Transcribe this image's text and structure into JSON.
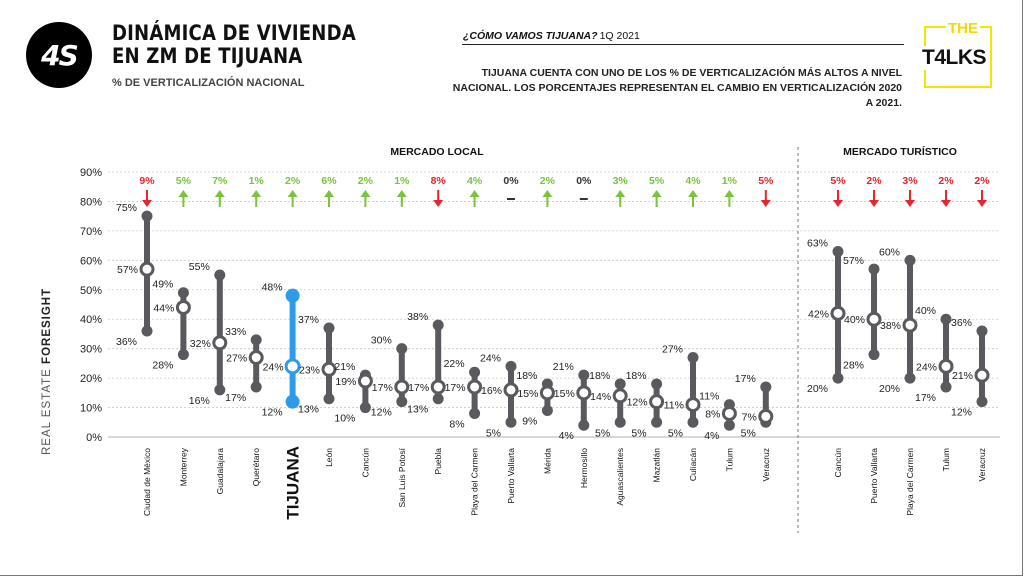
{
  "badge": {
    "text": "4S"
  },
  "title": {
    "line1": "DINÁMICA DE VIVIENDA",
    "line2": "EN ZM DE TIJUANA"
  },
  "subtitle": "% DE VERTICALIZACIÓN NACIONAL",
  "header": {
    "question": "¿CÓMO VAMOS TIJUANA?",
    "period": "1Q 2021"
  },
  "description": "TIJUANA CUENTA CON UNO DE LOS % DE VERTICALIZACIÓN MÁS ALTOS A NIVEL NACIONAL. LOS PORCENTAJES REPRESENTAN EL CAMBIO EN  VERTICALIZACIÓN 2020 A 2021.",
  "logo": {
    "top": "THE",
    "main": "T4LKS"
  },
  "side_label": {
    "light": "REAL ESTATE",
    "bold": "FORESIGHT"
  },
  "colors": {
    "bar": "#5a5a5e",
    "highlight": "#2f9be8",
    "up": "#78c43a",
    "down": "#e8242c",
    "neutral": "#333333"
  },
  "chart_data": {
    "type": "range",
    "ylim": [
      0,
      90
    ],
    "yticks": [
      "0%",
      "10%",
      "20%",
      "30%",
      "40%",
      "50%",
      "60%",
      "70%",
      "80%",
      "90%"
    ],
    "grid": true,
    "groups": [
      {
        "label": "MERCADO LOCAL",
        "count": 18
      },
      {
        "label": "MERCADO TURÍSTICO",
        "count": 5
      }
    ],
    "highlight": "TIJUANA",
    "points": [
      {
        "name": "Ciudad de México",
        "min": 36,
        "avg": 57,
        "max": 75,
        "change": "9%",
        "dir": "down"
      },
      {
        "name": "Monterrey",
        "min": 28,
        "avg": 44,
        "max": 49,
        "change": "5%",
        "dir": "up"
      },
      {
        "name": "Guadalajara",
        "min": 16,
        "avg": 32,
        "max": 55,
        "change": "7%",
        "dir": "up"
      },
      {
        "name": "Querétaro",
        "min": 17,
        "avg": 27,
        "max": 33,
        "change": "1%",
        "dir": "up"
      },
      {
        "name": "TIJUANA",
        "min": 12,
        "avg": 24,
        "max": 48,
        "change": "2%",
        "dir": "up"
      },
      {
        "name": "León",
        "min": 13,
        "avg": 23,
        "max": 37,
        "change": "6%",
        "dir": "up"
      },
      {
        "name": "Cancún",
        "min": 10,
        "avg": 19,
        "max": 21,
        "change": "2%",
        "dir": "up"
      },
      {
        "name": "San Luis Potosí",
        "min": 12,
        "avg": 17,
        "max": 30,
        "change": "1%",
        "dir": "up"
      },
      {
        "name": "Puebla",
        "min": 13,
        "avg": 17,
        "max": 38,
        "change": "8%",
        "dir": "down"
      },
      {
        "name": "Playa del Carmen",
        "min": 8,
        "avg": 17,
        "max": 22,
        "change": "4%",
        "dir": "up"
      },
      {
        "name": "Puerto Vallarta",
        "min": 5,
        "avg": 16,
        "max": 24,
        "change": "0%",
        "dir": "flat"
      },
      {
        "name": "Mérida",
        "min": 9,
        "avg": 15,
        "max": 18,
        "change": "2%",
        "dir": "up"
      },
      {
        "name": "Hermosillo",
        "min": 4,
        "avg": 15,
        "max": 21,
        "change": "0%",
        "dir": "flat"
      },
      {
        "name": "Aguascalientes",
        "min": 5,
        "avg": 14,
        "max": 18,
        "change": "3%",
        "dir": "up"
      },
      {
        "name": "Mazatlán",
        "min": 5,
        "avg": 12,
        "max": 18,
        "change": "5%",
        "dir": "up"
      },
      {
        "name": "Culiacán",
        "min": 5,
        "avg": 11,
        "max": 27,
        "change": "4%",
        "dir": "up"
      },
      {
        "name": "Tulum",
        "min": 4,
        "avg": 8,
        "max": 11,
        "change": "1%",
        "dir": "up"
      },
      {
        "name": "Veracruz",
        "min": 5,
        "avg": 7,
        "max": 17,
        "change": "5%",
        "dir": "down"
      },
      {
        "name": "Cancún",
        "min": 20,
        "avg": 42,
        "max": 63,
        "change": "5%",
        "dir": "down"
      },
      {
        "name": "Puerto Vallarta",
        "min": 28,
        "avg": 40,
        "max": 57,
        "change": "2%",
        "dir": "down"
      },
      {
        "name": "Playa del Carmen",
        "min": 20,
        "avg": 38,
        "max": 60,
        "change": "3%",
        "dir": "down"
      },
      {
        "name": "Tulum",
        "min": 17,
        "avg": 24,
        "max": 40,
        "change": "2%",
        "dir": "down"
      },
      {
        "name": "Veracruz",
        "min": 12,
        "avg": 21,
        "max": 36,
        "change": "2%",
        "dir": "down"
      }
    ]
  }
}
